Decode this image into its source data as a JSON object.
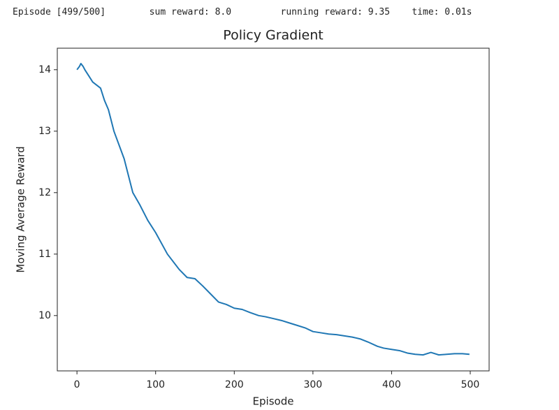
{
  "console": {
    "text": "Episode [499/500]        sum reward: 8.0         running reward: 9.35    time: 0.01s"
  },
  "chart_data": {
    "type": "line",
    "title": "Policy Gradient",
    "x_label": "Episode",
    "y_label": "Moving Average Reward",
    "x": [
      0,
      3,
      5,
      8,
      10,
      15,
      20,
      25,
      30,
      35,
      40,
      47,
      60,
      71,
      80,
      90,
      100,
      115,
      130,
      140,
      150,
      160,
      170,
      180,
      190,
      200,
      210,
      220,
      231,
      240,
      250,
      260,
      270,
      280,
      290,
      300,
      310,
      320,
      330,
      340,
      350,
      360,
      370,
      382,
      390,
      400,
      410,
      420,
      430,
      440,
      450,
      460,
      470,
      480,
      490,
      499
    ],
    "values": [
      14.0,
      14.05,
      14.1,
      14.05,
      14.0,
      13.9,
      13.8,
      13.75,
      13.7,
      13.5,
      13.35,
      13.0,
      12.55,
      12.0,
      11.8,
      11.55,
      11.35,
      11.0,
      10.75,
      10.62,
      10.6,
      10.48,
      10.35,
      10.22,
      10.18,
      10.12,
      10.1,
      10.05,
      10.0,
      9.98,
      9.95,
      9.92,
      9.88,
      9.84,
      9.8,
      9.74,
      9.72,
      9.7,
      9.69,
      9.67,
      9.65,
      9.62,
      9.57,
      9.5,
      9.47,
      9.45,
      9.43,
      9.39,
      9.37,
      9.36,
      9.4,
      9.36,
      9.37,
      9.38,
      9.38,
      9.37
    ],
    "color": "#1f77b4",
    "grid": false,
    "xlim": [
      -25,
      524
    ],
    "ylim": [
      9.1,
      14.35
    ],
    "xticks": [
      0,
      100,
      200,
      300,
      400,
      500
    ],
    "yticks": [
      10,
      11,
      12,
      13,
      14
    ]
  }
}
